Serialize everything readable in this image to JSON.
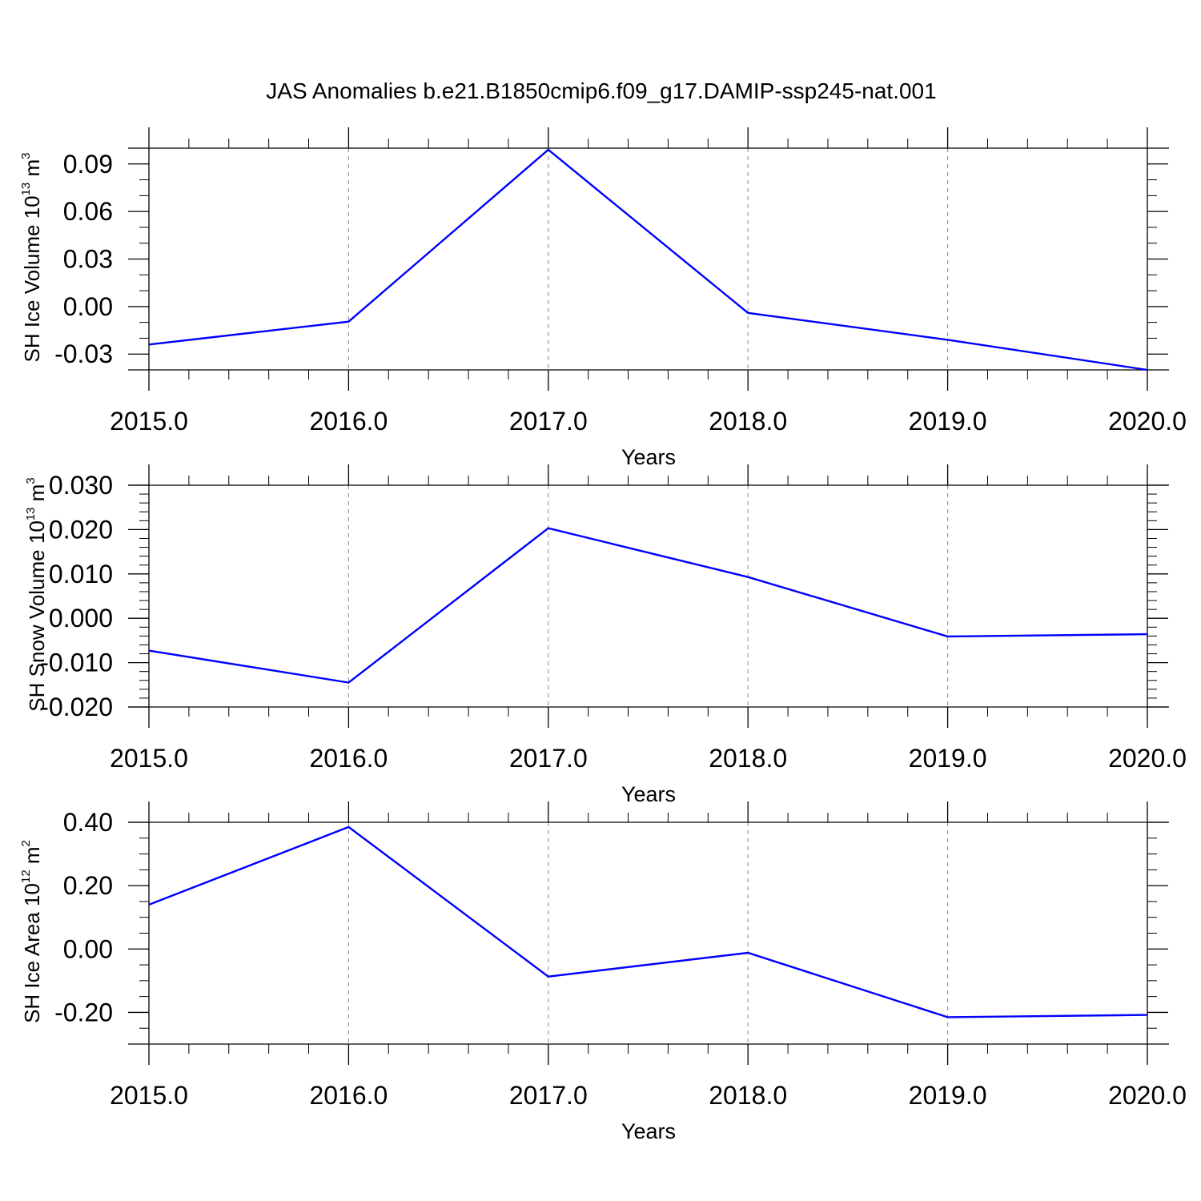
{
  "figure": {
    "title": "JAS Anomalies b.e21.B1850cmip6.f09_g17.DAMIP-ssp245-nat.001",
    "line_color": "#0000ff",
    "grid_color": "#999999",
    "axis_color": "#000000"
  },
  "chart_data": [
    {
      "type": "line",
      "xlabel": "Years",
      "ylabel": {
        "main": "SH Ice Volume 10",
        "exp": "13",
        "unit": " m",
        "unit_exp": "3"
      },
      "x": [
        2015,
        2016,
        2017,
        2018,
        2019,
        2020
      ],
      "x_ticks": [
        "2015.0",
        "2016.0",
        "2017.0",
        "2018.0",
        "2019.0",
        "2020.0"
      ],
      "y": [
        -0.024,
        -0.0095,
        0.099,
        -0.004,
        -0.021,
        -0.04
      ],
      "ylim": [
        -0.04,
        0.1
      ],
      "y_ticks": [
        -0.03,
        0.0,
        0.03,
        0.06,
        0.09
      ],
      "y_tick_labels": [
        "-0.03",
        "0.00",
        "0.03",
        "0.06",
        "0.09"
      ],
      "y_minor_step": 0.01,
      "grid": "vertical-dashed"
    },
    {
      "type": "line",
      "xlabel": "Years",
      "ylabel": {
        "main": "SH Snow Volume 10",
        "exp": "13",
        "unit": " m",
        "unit_exp": "3"
      },
      "x": [
        2015,
        2016,
        2017,
        2018,
        2019,
        2020
      ],
      "x_ticks": [
        "2015.0",
        "2016.0",
        "2017.0",
        "2018.0",
        "2019.0",
        "2020.0"
      ],
      "y": [
        -0.0073,
        -0.0145,
        0.0203,
        0.0093,
        -0.0041,
        -0.0036
      ],
      "ylim": [
        -0.02,
        0.03
      ],
      "y_ticks": [
        -0.02,
        -0.01,
        0.0,
        0.01,
        0.02,
        0.03
      ],
      "y_tick_labels": [
        "-0.020",
        "-0.010",
        "0.000",
        "0.010",
        "0.020",
        "0.030"
      ],
      "y_minor_step": 0.002,
      "grid": "vertical-dashed"
    },
    {
      "type": "line",
      "xlabel": "Years",
      "ylabel": {
        "main": "SH Ice Area 10",
        "exp": "12",
        "unit": " m",
        "unit_exp": "2"
      },
      "x": [
        2015,
        2016,
        2017,
        2018,
        2019,
        2020
      ],
      "x_ticks": [
        "2015.0",
        "2016.0",
        "2017.0",
        "2018.0",
        "2019.0",
        "2020.0"
      ],
      "y": [
        0.14,
        0.385,
        -0.087,
        -0.012,
        -0.215,
        -0.208
      ],
      "ylim": [
        -0.3,
        0.4
      ],
      "y_ticks": [
        -0.2,
        0.0,
        0.2,
        0.4
      ],
      "y_tick_labels": [
        "-0.20",
        "0.00",
        "0.20",
        "0.40"
      ],
      "y_minor_step": 0.05,
      "grid": "vertical-dashed"
    }
  ]
}
